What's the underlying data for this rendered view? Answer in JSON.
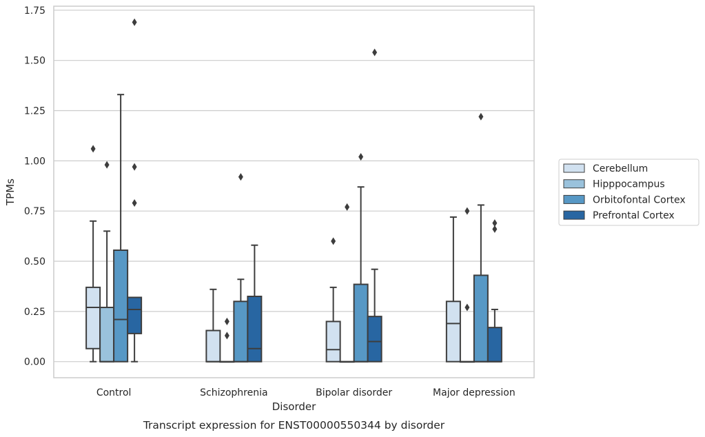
{
  "chart_data": {
    "type": "box",
    "title": "",
    "caption": "Transcript expression for ENST00000550344 by disorder",
    "xlabel": "Disorder",
    "ylabel": "TPMs",
    "ylim": [
      -0.08,
      1.77
    ],
    "yticks": [
      0.0,
      0.25,
      0.5,
      0.75,
      1.0,
      1.25,
      1.5,
      1.75
    ],
    "ytick_labels": [
      "0.00",
      "0.25",
      "0.50",
      "0.75",
      "1.00",
      "1.25",
      "1.50",
      "1.75"
    ],
    "grid": true,
    "legend_position": "right",
    "categories": [
      "Control",
      "Schizophrenia",
      "Bipolar disorder",
      "Major depression"
    ],
    "series": [
      {
        "name": "Cerebellum",
        "color": "#d1e1f0",
        "boxes": [
          {
            "whisker_low": 0.0,
            "q1": 0.065,
            "median": 0.27,
            "q3": 0.37,
            "whisker_high": 0.7,
            "outliers": [
              1.06
            ]
          },
          {
            "whisker_low": 0.0,
            "q1": 0.0,
            "median": 0.0,
            "q3": 0.155,
            "whisker_high": 0.36,
            "outliers": []
          },
          {
            "whisker_low": 0.0,
            "q1": 0.0,
            "median": 0.06,
            "q3": 0.2,
            "whisker_high": 0.37,
            "outliers": [
              0.6
            ]
          },
          {
            "whisker_low": 0.0,
            "q1": 0.0,
            "median": 0.19,
            "q3": 0.3,
            "whisker_high": 0.72,
            "outliers": []
          }
        ]
      },
      {
        "name": "Hipppocampus",
        "color": "#9ac2dc",
        "boxes": [
          {
            "whisker_low": 0.0,
            "q1": 0.0,
            "median": 0.0,
            "q3": 0.27,
            "whisker_high": 0.65,
            "outliers": [
              0.98
            ]
          },
          {
            "whisker_low": 0.0,
            "q1": 0.0,
            "median": 0.0,
            "q3": 0.0,
            "whisker_high": 0.0,
            "outliers": [
              0.13,
              0.2
            ]
          },
          {
            "whisker_low": 0.0,
            "q1": 0.0,
            "median": 0.0,
            "q3": 0.0,
            "whisker_high": 0.0,
            "outliers": [
              0.77
            ]
          },
          {
            "whisker_low": 0.0,
            "q1": 0.0,
            "median": 0.0,
            "q3": 0.0,
            "whisker_high": 0.0,
            "outliers": [
              0.27,
              0.75
            ]
          }
        ]
      },
      {
        "name": "Orbitofontal Cortex",
        "color": "#5798c5",
        "boxes": [
          {
            "whisker_low": 0.0,
            "q1": 0.0,
            "median": 0.21,
            "q3": 0.555,
            "whisker_high": 1.33,
            "outliers": []
          },
          {
            "whisker_low": 0.0,
            "q1": 0.0,
            "median": 0.0,
            "q3": 0.3,
            "whisker_high": 0.41,
            "outliers": [
              0.92
            ]
          },
          {
            "whisker_low": 0.0,
            "q1": 0.0,
            "median": 0.0,
            "q3": 0.385,
            "whisker_high": 0.87,
            "outliers": [
              1.02
            ]
          },
          {
            "whisker_low": 0.0,
            "q1": 0.0,
            "median": 0.0,
            "q3": 0.43,
            "whisker_high": 0.78,
            "outliers": [
              1.22
            ]
          }
        ]
      },
      {
        "name": "Prefrontal Cortex",
        "color": "#2866a2",
        "boxes": [
          {
            "whisker_low": 0.0,
            "q1": 0.14,
            "median": 0.26,
            "q3": 0.32,
            "whisker_high": 0.32,
            "outliers": [
              0.79,
              0.97,
              1.69
            ]
          },
          {
            "whisker_low": 0.0,
            "q1": 0.0,
            "median": 0.065,
            "q3": 0.325,
            "whisker_high": 0.58,
            "outliers": []
          },
          {
            "whisker_low": 0.0,
            "q1": 0.0,
            "median": 0.1,
            "q3": 0.225,
            "whisker_high": 0.46,
            "outliers": [
              1.54
            ]
          },
          {
            "whisker_low": 0.0,
            "q1": 0.0,
            "median": 0.0,
            "q3": 0.17,
            "whisker_high": 0.26,
            "outliers": [
              0.66,
              0.69
            ]
          }
        ]
      }
    ]
  }
}
